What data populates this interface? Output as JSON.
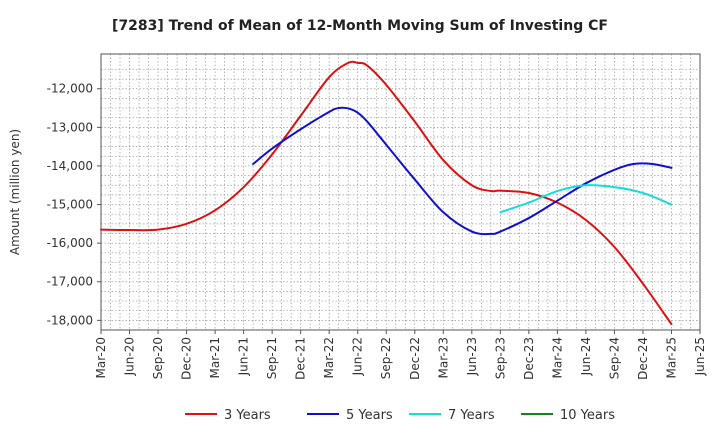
{
  "chart_data": {
    "type": "line",
    "title": "[7283]  Trend of Mean of 12-Month Moving Sum of Investing CF",
    "xlabel": "",
    "ylabel": "Amount (million yen)",
    "x_ticks": [
      "Mar-20",
      "Jun-20",
      "Sep-20",
      "Dec-20",
      "Mar-21",
      "Jun-21",
      "Sep-21",
      "Dec-21",
      "Mar-22",
      "Jun-22",
      "Sep-22",
      "Dec-22",
      "Mar-23",
      "Jun-23",
      "Sep-23",
      "Dec-23",
      "Mar-24",
      "Jun-24",
      "Sep-24",
      "Dec-24",
      "Mar-25",
      "Jun-25"
    ],
    "y_ticks": [
      -12000,
      -13000,
      -14000,
      -15000,
      -16000,
      -17000,
      -18000
    ],
    "y_tick_labels": [
      "-12,000",
      "-13,000",
      "-14,000",
      "-15,000",
      "-16,000",
      "-17,000",
      "-18,000"
    ],
    "ylim": [
      -18250,
      -11100
    ],
    "grid": true,
    "legend_position": "bottom",
    "series": [
      {
        "name": "3 Years",
        "color": "#dd1111",
        "points": [
          [
            "Mar-20",
            -15650
          ],
          [
            "Jun-20",
            -15660
          ],
          [
            "Sep-20",
            -15650
          ],
          [
            "Dec-20",
            -15500
          ],
          [
            "Mar-21",
            -15150
          ],
          [
            "Jun-21",
            -14550
          ],
          [
            "Sep-21",
            -13700
          ],
          [
            "Dec-21",
            -12700
          ],
          [
            "Mar-22",
            -11700
          ],
          [
            "May-22",
            -11330
          ],
          [
            "Jun-22",
            -11330
          ],
          [
            "Jul-22",
            -11400
          ],
          [
            "Sep-22",
            -11900
          ],
          [
            "Dec-22",
            -12850
          ],
          [
            "Mar-23",
            -13850
          ],
          [
            "Jun-23",
            -14500
          ],
          [
            "Aug-23",
            -14650
          ],
          [
            "Sep-23",
            -14640
          ],
          [
            "Dec-23",
            -14700
          ],
          [
            "Mar-24",
            -14950
          ],
          [
            "Jun-24",
            -15400
          ],
          [
            "Sep-24",
            -16100
          ],
          [
            "Dec-24",
            -17050
          ],
          [
            "Mar-25",
            -18100
          ]
        ]
      },
      {
        "name": "5 Years",
        "color": "#1111cc",
        "points": [
          [
            "Jul-21",
            -13950
          ],
          [
            "Sep-21",
            -13550
          ],
          [
            "Dec-21",
            -13050
          ],
          [
            "Mar-22",
            -12600
          ],
          [
            "Apr-22",
            -12500
          ],
          [
            "May-22",
            -12510
          ],
          [
            "Jun-22",
            -12620
          ],
          [
            "Jul-22",
            -12850
          ],
          [
            "Sep-22",
            -13450
          ],
          [
            "Dec-22",
            -14350
          ],
          [
            "Mar-23",
            -15200
          ],
          [
            "Jun-23",
            -15700
          ],
          [
            "Aug-23",
            -15760
          ],
          [
            "Sep-23",
            -15700
          ],
          [
            "Dec-23",
            -15350
          ],
          [
            "Mar-24",
            -14900
          ],
          [
            "Jun-24",
            -14450
          ],
          [
            "Sep-24",
            -14100
          ],
          [
            "Nov-24",
            -13950
          ],
          [
            "Jan-25",
            -13950
          ],
          [
            "Mar-25",
            -14050
          ]
        ]
      },
      {
        "name": "7 Years",
        "color": "#11dddd",
        "points": [
          [
            "Sep-23",
            -15200
          ],
          [
            "Dec-23",
            -14950
          ],
          [
            "Mar-24",
            -14650
          ],
          [
            "Jun-24",
            -14500
          ],
          [
            "Sep-24",
            -14550
          ],
          [
            "Dec-24",
            -14700
          ],
          [
            "Mar-25",
            -15000
          ]
        ]
      },
      {
        "name": "10 Years",
        "color": "#118811",
        "points": []
      }
    ]
  }
}
